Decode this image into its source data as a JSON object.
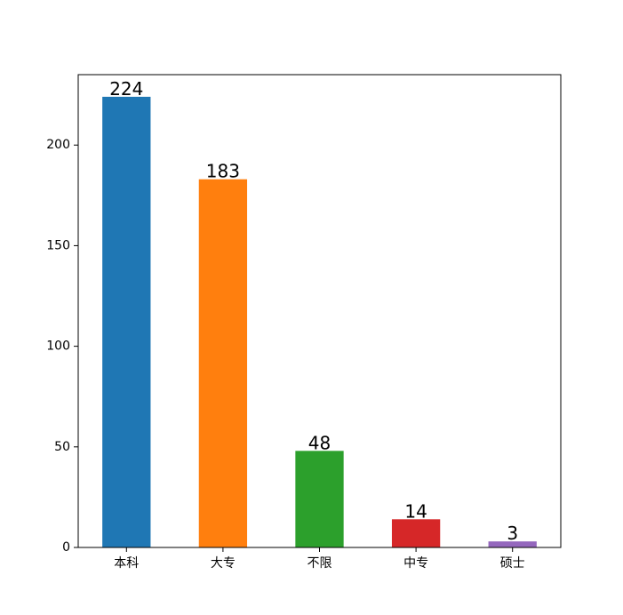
{
  "chart_data": {
    "type": "bar",
    "categories": [
      "本科",
      "大专",
      "不限",
      "中专",
      "硕士"
    ],
    "values": [
      224,
      183,
      48,
      14,
      3
    ],
    "colors": [
      "#1f77b4",
      "#ff7f0e",
      "#2ca02c",
      "#d62728",
      "#9467bd"
    ],
    "ylim": [
      0,
      235
    ],
    "yticks": [
      0,
      50,
      100,
      150,
      200
    ],
    "grid": false
  }
}
